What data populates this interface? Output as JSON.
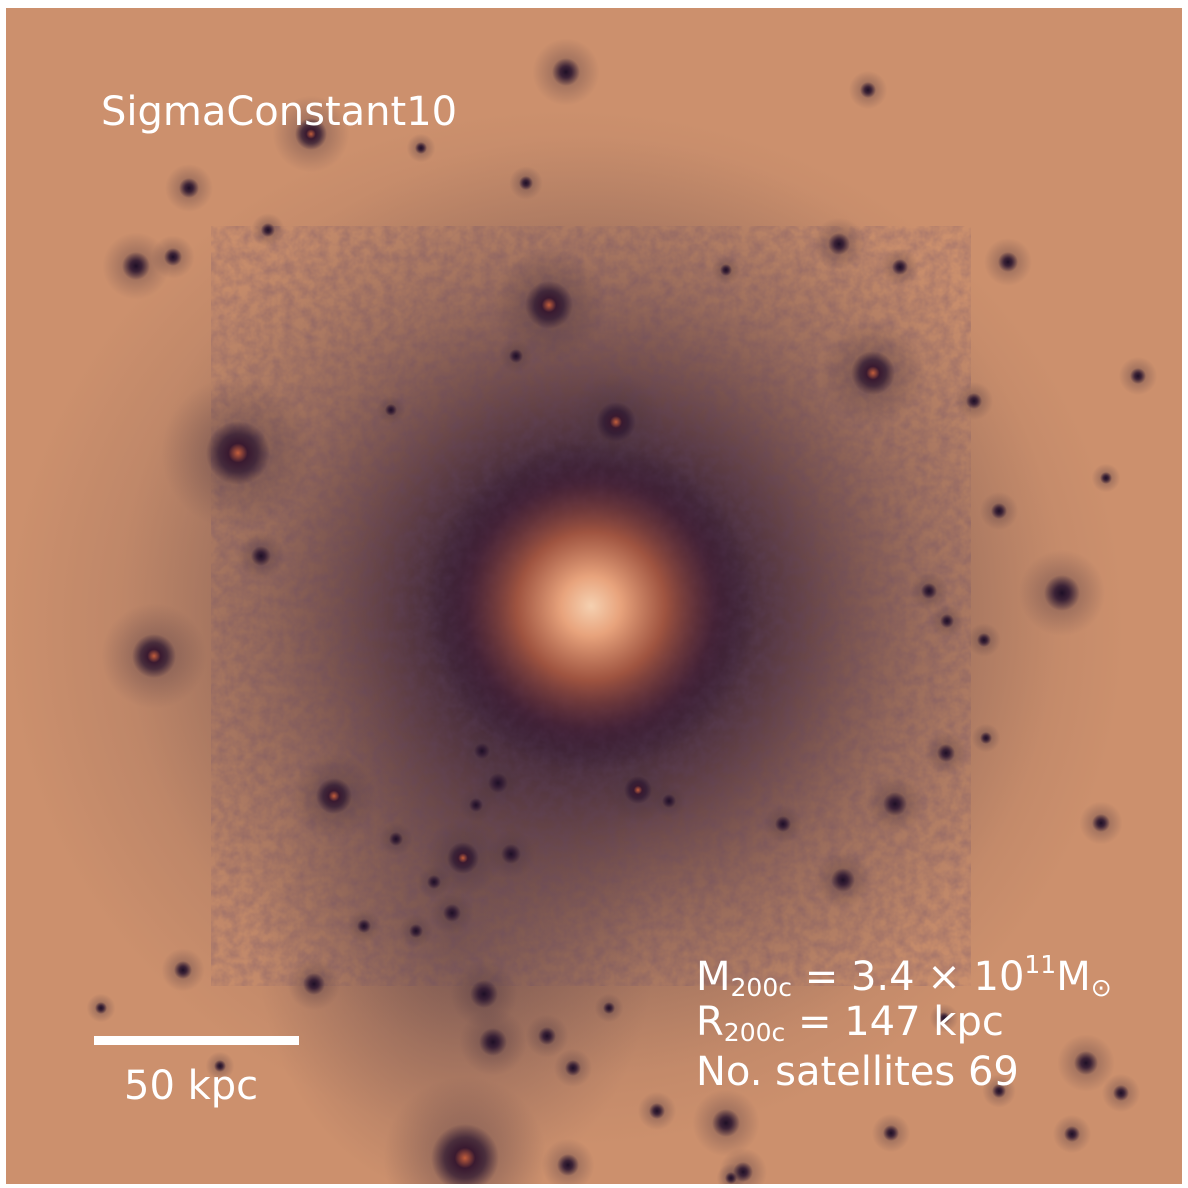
{
  "image": {
    "title": "SigmaConstant10",
    "scale_bar_label": "50 kpc",
    "background_color": "#d8946a",
    "halo_color": "#2c1630",
    "core_color": "#f5d0b0",
    "annotations": {
      "mass": {
        "symbol": "M",
        "subscript": "200c",
        "equals": " = ",
        "value": "3.4",
        "times": " × 10",
        "exponent": "11",
        "unit_symbol": "M",
        "unit_subscript": "⊙"
      },
      "radius": {
        "symbol": "R",
        "subscript": "200c",
        "equals": " = ",
        "value": "147",
        "unit": " kpc"
      },
      "satellites": {
        "label": "No. satellites ",
        "count": "69"
      }
    }
  }
}
